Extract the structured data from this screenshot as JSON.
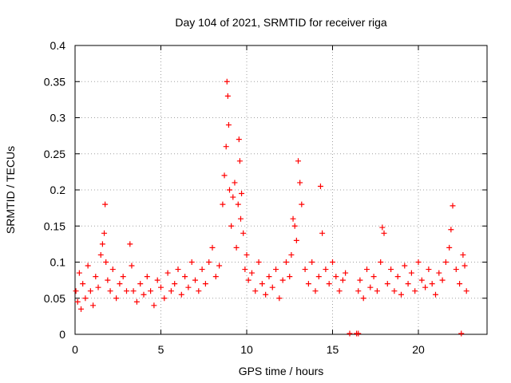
{
  "chart_data": {
    "type": "scatter",
    "title": "Day 104 of 2021, SRMTID for receiver riga",
    "xlabel": "GPS time / hours",
    "ylabel": "SRMTID / TECUs",
    "xlim": [
      0,
      24
    ],
    "ylim": [
      0,
      0.4
    ],
    "x_ticks": [
      0,
      5,
      10,
      15,
      20
    ],
    "y_ticks": [
      0,
      0.05,
      0.1,
      0.15,
      0.2,
      0.25,
      0.3,
      0.35,
      0.4
    ],
    "x_tick_labels": [
      "0",
      "5",
      "10",
      "15",
      "20"
    ],
    "y_tick_labels": [
      "0",
      "0.05",
      "0.1",
      "0.15",
      "0.2",
      "0.25",
      "0.3",
      "0.35",
      "0.4"
    ],
    "grid": true,
    "marker": "+",
    "color": "#ff0000",
    "series": [
      {
        "x": [
          0.05,
          0.15,
          0.25,
          0.35,
          0.45,
          0.6,
          0.75,
          0.9,
          1.05,
          1.2,
          1.35,
          1.5,
          1.6,
          1.7,
          1.75,
          1.8,
          1.9,
          2.05,
          2.2,
          2.4,
          2.6,
          2.8,
          3.0,
          3.2,
          3.3,
          3.4,
          3.6,
          3.8,
          4.0,
          4.2,
          4.4,
          4.6,
          4.8,
          5.0,
          5.2,
          5.4,
          5.6,
          5.8,
          6.0,
          6.2,
          6.4,
          6.6,
          6.8,
          7.0,
          7.2,
          7.4,
          7.6,
          7.8,
          8.0,
          8.2,
          8.4,
          8.6,
          8.7,
          8.8,
          8.85,
          8.9,
          8.95,
          9.0,
          9.1,
          9.2,
          9.3,
          9.4,
          9.5,
          9.55,
          9.6,
          9.65,
          9.7,
          9.8,
          9.9,
          10.0,
          10.1,
          10.3,
          10.5,
          10.7,
          10.9,
          11.1,
          11.3,
          11.5,
          11.7,
          11.9,
          12.1,
          12.3,
          12.5,
          12.6,
          12.7,
          12.8,
          12.9,
          13.0,
          13.1,
          13.2,
          13.4,
          13.6,
          13.8,
          14.0,
          14.2,
          14.3,
          14.4,
          14.6,
          14.8,
          15.0,
          15.2,
          15.4,
          15.6,
          15.75,
          16.5,
          16.6,
          16.8,
          17.0,
          17.2,
          17.4,
          17.6,
          17.8,
          17.9,
          18.0,
          18.2,
          18.4,
          18.6,
          18.8,
          19.0,
          19.2,
          19.4,
          19.6,
          19.8,
          20.0,
          20.2,
          20.4,
          20.6,
          20.8,
          21.0,
          21.2,
          21.4,
          21.6,
          21.8,
          21.9,
          22.0,
          22.2,
          22.4,
          22.6,
          22.7,
          22.8
        ],
        "y": [
          0.06,
          0.045,
          0.085,
          0.035,
          0.07,
          0.05,
          0.095,
          0.06,
          0.04,
          0.08,
          0.065,
          0.11,
          0.125,
          0.14,
          0.18,
          0.1,
          0.075,
          0.06,
          0.09,
          0.05,
          0.07,
          0.08,
          0.06,
          0.125,
          0.095,
          0.06,
          0.045,
          0.07,
          0.055,
          0.08,
          0.06,
          0.04,
          0.075,
          0.065,
          0.05,
          0.085,
          0.06,
          0.07,
          0.09,
          0.055,
          0.08,
          0.065,
          0.1,
          0.075,
          0.06,
          0.09,
          0.07,
          0.1,
          0.12,
          0.08,
          0.095,
          0.18,
          0.22,
          0.26,
          0.35,
          0.33,
          0.29,
          0.2,
          0.15,
          0.19,
          0.21,
          0.12,
          0.18,
          0.27,
          0.24,
          0.16,
          0.195,
          0.14,
          0.09,
          0.11,
          0.075,
          0.085,
          0.06,
          0.1,
          0.07,
          0.055,
          0.08,
          0.065,
          0.09,
          0.05,
          0.075,
          0.1,
          0.08,
          0.11,
          0.16,
          0.15,
          0.13,
          0.24,
          0.21,
          0.18,
          0.09,
          0.07,
          0.1,
          0.06,
          0.08,
          0.205,
          0.14,
          0.09,
          0.07,
          0.1,
          0.08,
          0.06,
          0.075,
          0.085,
          0.06,
          0.075,
          0.05,
          0.09,
          0.065,
          0.08,
          0.06,
          0.1,
          0.148,
          0.14,
          0.07,
          0.09,
          0.06,
          0.08,
          0.055,
          0.095,
          0.07,
          0.085,
          0.06,
          0.1,
          0.075,
          0.065,
          0.09,
          0.07,
          0.055,
          0.085,
          0.075,
          0.1,
          0.12,
          0.145,
          0.178,
          0.09,
          0.07,
          0.11,
          0.095,
          0.06
        ]
      }
    ],
    "zero_points": {
      "x": [
        16.0,
        16.4,
        16.5,
        22.5
      ],
      "y": [
        0,
        0,
        0,
        0
      ]
    }
  }
}
